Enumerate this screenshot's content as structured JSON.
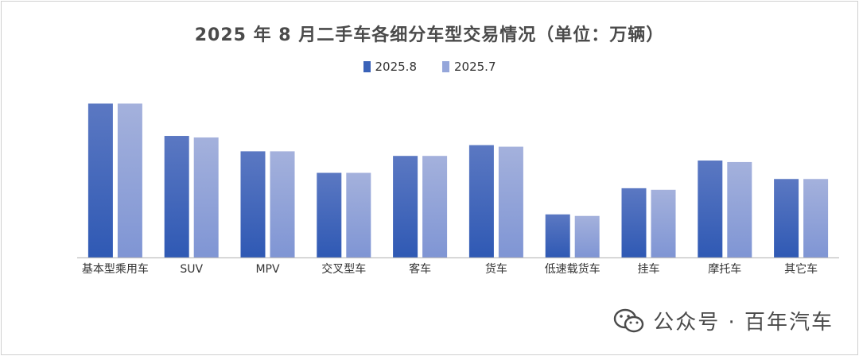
{
  "chart_data": {
    "type": "bar",
    "title": "2025 年 8 月二手车各细分车型交易情况（单位：万辆）",
    "categories": [
      "基本型乘用车",
      "SUV",
      "MPV",
      "交叉型车",
      "客车",
      "货车",
      "低速载货车",
      "挂车",
      "摩托车",
      "其它车"
    ],
    "series": [
      {
        "name": "2025.8",
        "values": [
          100,
          79,
          69,
          55,
          66,
          73,
          28,
          45,
          63,
          51
        ]
      },
      {
        "name": "2025.7",
        "values": [
          100,
          78,
          69,
          55,
          66,
          72,
          27,
          44,
          62,
          51
        ]
      }
    ],
    "ylim": [
      0,
      110
    ],
    "grid": false,
    "legend_position": "top-center",
    "colors": {
      "2025.8_top": "#5b78c2",
      "2025.8_bottom": "#2f59b4",
      "2025.7_top": "#a4b1dc",
      "2025.7_bottom": "#7f95d4",
      "axis": "#bfbfbf"
    }
  },
  "watermark": {
    "icon": "wechat-icon",
    "text": "公众号 · 百年汽车"
  }
}
